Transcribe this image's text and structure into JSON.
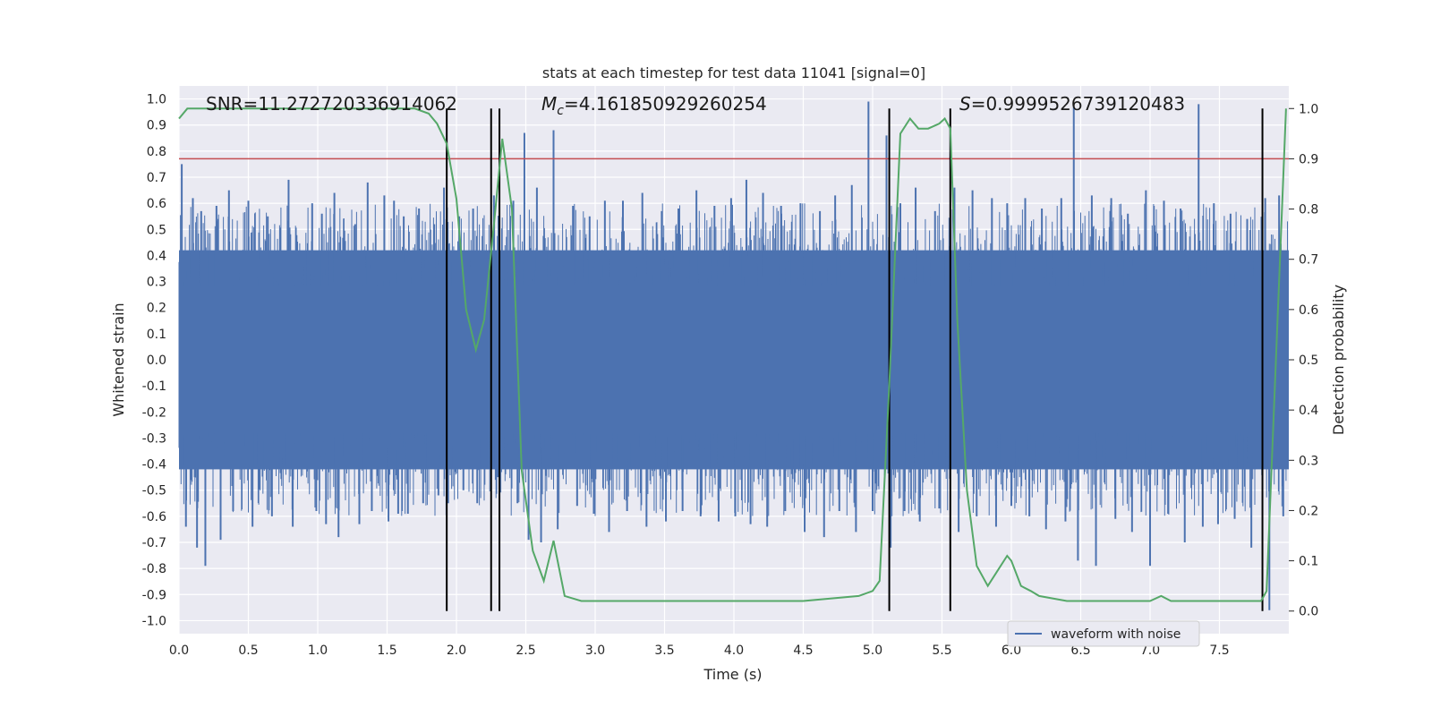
{
  "chart_data": {
    "type": "line",
    "title": "stats at each timestep for test data 11041 [signal=0]",
    "xlabel": "Time (s)",
    "ylabel": "Whitened strain",
    "y2label": "Detection probability",
    "xlim": [
      0.0,
      8.0
    ],
    "ylim": [
      -1.05,
      1.05
    ],
    "y2lim": [
      -0.045,
      1.045
    ],
    "x_ticks": [
      "0.0",
      "0.5",
      "1.0",
      "1.5",
      "2.0",
      "2.5",
      "3.0",
      "3.5",
      "4.0",
      "4.5",
      "5.0",
      "5.5",
      "6.0",
      "6.5",
      "7.0",
      "7.5"
    ],
    "y_ticks": [
      "1.0",
      "0.9",
      "0.8",
      "0.7",
      "0.6",
      "0.5",
      "0.4",
      "0.3",
      "0.2",
      "0.1",
      "0.0",
      "-0.1",
      "-0.2",
      "-0.3",
      "-0.4",
      "-0.5",
      "-0.6",
      "-0.7",
      "-0.8",
      "-0.9",
      "-1.0"
    ],
    "y2_ticks": [
      "1.0",
      "0.9",
      "0.8",
      "0.7",
      "0.6",
      "0.5",
      "0.4",
      "0.3",
      "0.2",
      "0.1",
      "0.0"
    ],
    "grid": true,
    "legend_position": "bottom-right",
    "annotations": {
      "snr": "SNR=11.272720336914062",
      "mc_symbol": "M",
      "mc_sub": "c",
      "mc_value": "=4.161850929260254",
      "s_symbol": "S",
      "s_value": "=0.9999526739120483"
    },
    "threshold": 0.9,
    "vertical_lines": [
      1.93,
      2.25,
      2.31,
      5.12,
      5.56,
      7.81
    ],
    "series": [
      {
        "name": "waveform with noise",
        "color": "#4c72b0",
        "description_values": "dense noise samples roughly within -0.8 to 1.0",
        "peaks_x": [
          0.02,
          0.1,
          0.16,
          0.27,
          0.36,
          0.5,
          0.64,
          0.79,
          0.96,
          1.03,
          1.12,
          1.27,
          1.36,
          1.48,
          1.55,
          1.62,
          1.73,
          1.84,
          1.91,
          2.02,
          2.12,
          2.27,
          2.41,
          2.49,
          2.58,
          2.7,
          2.84,
          2.96,
          3.07,
          3.2,
          3.34,
          3.48,
          3.6,
          3.73,
          3.86,
          3.98,
          4.09,
          4.21,
          4.34,
          4.48,
          4.62,
          4.73,
          4.85,
          4.97,
          5.1,
          5.2,
          5.31,
          5.45,
          5.59,
          5.72,
          5.86,
          5.97,
          6.1,
          6.22,
          6.36,
          6.45,
          6.58,
          6.72,
          6.84,
          6.97,
          7.1,
          7.22,
          7.35,
          7.46,
          7.58,
          7.7,
          7.83,
          7.93
        ],
        "peaks_y": [
          0.75,
          0.62,
          0.57,
          0.59,
          0.65,
          0.61,
          0.55,
          0.69,
          0.6,
          0.56,
          0.64,
          0.52,
          0.68,
          0.63,
          0.61,
          0.55,
          0.58,
          0.52,
          0.66,
          0.55,
          0.58,
          0.63,
          0.61,
          0.87,
          0.66,
          0.88,
          0.59,
          0.55,
          0.61,
          0.61,
          0.64,
          0.57,
          0.58,
          0.65,
          0.59,
          0.62,
          0.69,
          0.64,
          0.59,
          0.6,
          0.57,
          0.63,
          0.67,
          0.99,
          0.86,
          0.6,
          0.66,
          0.57,
          0.66,
          0.65,
          0.62,
          0.6,
          0.62,
          0.58,
          0.62,
          0.97,
          0.63,
          0.62,
          0.56,
          0.65,
          0.61,
          0.58,
          0.98,
          0.6,
          0.56,
          0.54,
          0.62,
          0.63
        ],
        "troughs_y": [
          -0.64,
          -0.72,
          -0.79,
          -0.69,
          -0.58,
          -0.64,
          -0.6,
          -0.64,
          -0.58,
          -0.63,
          -0.68,
          -0.63,
          -0.58,
          -0.62,
          -0.59,
          -0.59,
          -0.55,
          -0.52,
          -0.55,
          -0.5,
          -0.55,
          -0.45,
          -0.55,
          -0.69,
          -0.7,
          -0.65,
          -0.56,
          -0.59,
          -0.66,
          -0.58,
          -0.64,
          -0.62,
          -0.58,
          -0.6,
          -0.62,
          -0.6,
          -0.63,
          -0.64,
          -0.58,
          -0.66,
          -0.68,
          -0.58,
          -0.66,
          -0.58,
          -0.72,
          -0.58,
          -0.62,
          -0.57,
          -0.66,
          -0.6,
          -0.64,
          -0.56,
          -0.6,
          -0.65,
          -0.62,
          -0.77,
          -0.79,
          -0.61,
          -0.66,
          -0.79,
          -0.59,
          -0.7,
          -0.64,
          -0.63,
          -0.61,
          -0.72,
          -0.96,
          -0.6
        ]
      },
      {
        "name": "Detection probability",
        "color": "#55a868",
        "axis": "right",
        "x": [
          0.0,
          0.06,
          0.2,
          0.5,
          1.0,
          1.5,
          1.7,
          1.8,
          1.86,
          1.93,
          2.0,
          2.07,
          2.14,
          2.2,
          2.27,
          2.33,
          2.4,
          2.47,
          2.55,
          2.63,
          2.7,
          2.78,
          2.9,
          3.1,
          3.5,
          4.0,
          4.5,
          4.9,
          5.0,
          5.05,
          5.12,
          5.2,
          5.27,
          5.33,
          5.4,
          5.48,
          5.52,
          5.56,
          5.61,
          5.68,
          5.75,
          5.83,
          5.9,
          5.97,
          6.0,
          6.07,
          6.14,
          6.2,
          6.4,
          6.7,
          7.0,
          7.08,
          7.15,
          7.4,
          7.8,
          7.84,
          7.9,
          7.98
        ],
        "y": [
          0.98,
          1.0,
          1.0,
          1.0,
          1.0,
          1.0,
          1.0,
          0.99,
          0.97,
          0.93,
          0.82,
          0.6,
          0.52,
          0.58,
          0.77,
          0.94,
          0.8,
          0.28,
          0.12,
          0.06,
          0.14,
          0.03,
          0.02,
          0.02,
          0.02,
          0.02,
          0.02,
          0.03,
          0.04,
          0.06,
          0.45,
          0.95,
          0.98,
          0.96,
          0.96,
          0.97,
          0.98,
          0.96,
          0.58,
          0.24,
          0.09,
          0.05,
          0.08,
          0.11,
          0.1,
          0.05,
          0.04,
          0.03,
          0.02,
          0.02,
          0.02,
          0.03,
          0.02,
          0.02,
          0.02,
          0.04,
          0.45,
          1.0
        ]
      }
    ]
  }
}
